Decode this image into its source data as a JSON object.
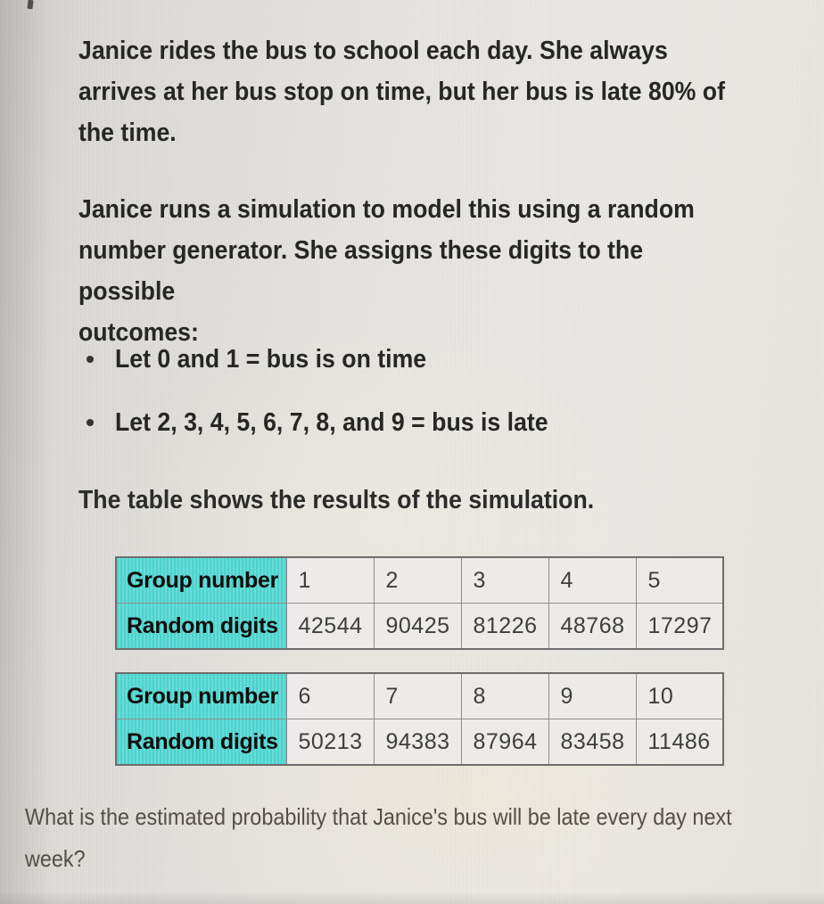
{
  "colors": {
    "page_bg_left": "#d2d0cd",
    "page_bg_right": "#eae8e4",
    "body_text": "#262626",
    "question_text": "#544e46",
    "table_header_bg": "#58d7d2",
    "table_cell_bg": "#edebe7",
    "table_border": "#6d6d6d"
  },
  "problem": {
    "paragraph1": "Janice rides the bus to school each day. She always\narrives at her bus stop on time, but her bus is late 80% of\nthe time.",
    "paragraph2": "Janice runs a simulation to model this using a random\nnumber generator. She assigns these digits to the possible\noutcomes:",
    "bullets": [
      "Let 0 and 1 = bus is on time",
      "Let 2, 3, 4, 5, 6, 7, 8, and 9 = bus is late"
    ],
    "table_intro": "The table shows the results of the simulation.",
    "question": "What is the estimated probability that Janice's bus will be late every day next\nweek?"
  },
  "tables": [
    {
      "rows": [
        {
          "label": "Group number",
          "values": [
            "1",
            "2",
            "3",
            "4",
            "5"
          ]
        },
        {
          "label": "Random digits",
          "values": [
            "42544",
            "90425",
            "81226",
            "48768",
            "17297"
          ]
        }
      ]
    },
    {
      "rows": [
        {
          "label": "Group number",
          "values": [
            "6",
            "7",
            "8",
            "9",
            "10"
          ]
        },
        {
          "label": "Random digits",
          "values": [
            "50213",
            "94383",
            "87964",
            "83458",
            "11486"
          ]
        }
      ]
    }
  ]
}
